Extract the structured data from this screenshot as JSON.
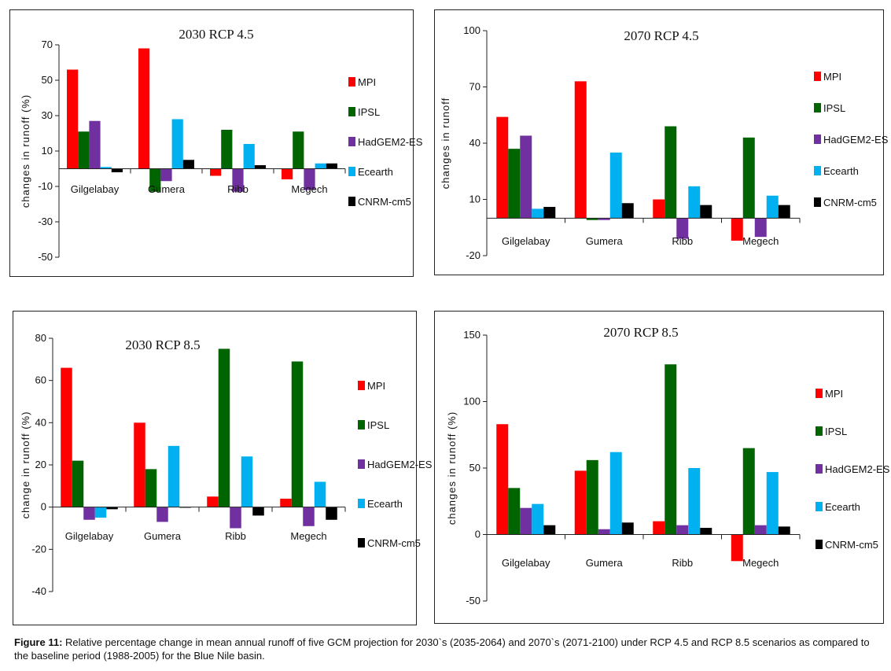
{
  "colors": {
    "MPI": "#ff0000",
    "IPSL": "#006400",
    "HadGEM2-ES": "#7030a0",
    "Ecearth": "#00b0f0",
    "CNRM-cm5": "#000000"
  },
  "chart_data": [
    {
      "type": "bar",
      "title": "2030 RCP 4.5",
      "ylabel": "changes in runoff (%)",
      "ylim": [
        -50,
        70
      ],
      "yticks": [
        "70",
        "50",
        "30",
        "10",
        "-10",
        "-30",
        "-50"
      ],
      "categories": [
        "Gilgelabay",
        "Gumera",
        "Ribb",
        "Megech"
      ],
      "series": [
        {
          "name": "MPI",
          "values": [
            56,
            68,
            -4,
            -6
          ]
        },
        {
          "name": "IPSL",
          "values": [
            21,
            -13,
            22,
            21
          ]
        },
        {
          "name": "HadGEM2-ES",
          "values": [
            27,
            -7,
            -13,
            -12
          ]
        },
        {
          "name": "Ecearth",
          "values": [
            1,
            28,
            14,
            3
          ]
        },
        {
          "name": "CNRM-cm5",
          "values": [
            -2,
            5,
            2,
            3
          ]
        }
      ],
      "legend": "right"
    },
    {
      "type": "bar",
      "title": "2070 RCP 4.5",
      "ylabel": "changes in runoff",
      "ylim": [
        -20,
        100
      ],
      "yticks": [
        "100",
        "70",
        "40",
        "10",
        "-20"
      ],
      "categories": [
        "Gilgelabay",
        "Gumera",
        "Ribb",
        "Megech"
      ],
      "series": [
        {
          "name": "MPI",
          "values": [
            54,
            73,
            10,
            -12
          ]
        },
        {
          "name": "IPSL",
          "values": [
            37,
            -1,
            49,
            43
          ]
        },
        {
          "name": "HadGEM2-ES",
          "values": [
            44,
            -1,
            -11,
            -10
          ]
        },
        {
          "name": "Ecearth",
          "values": [
            5,
            35,
            17,
            12
          ]
        },
        {
          "name": "CNRM-cm5",
          "values": [
            6,
            8,
            7,
            7
          ]
        }
      ],
      "legend": "right"
    },
    {
      "type": "bar",
      "title": "2030 RCP 8.5",
      "ylabel": "change in runoff (%)",
      "ylim": [
        -40,
        80
      ],
      "yticks": [
        "80",
        "60",
        "40",
        "20",
        "0",
        "-20",
        "-40"
      ],
      "categories": [
        "Gilgelabay",
        "Gumera",
        "Ribb",
        "Megech"
      ],
      "series": [
        {
          "name": "MPI",
          "values": [
            66,
            40,
            5,
            4
          ]
        },
        {
          "name": "IPSL",
          "values": [
            22,
            18,
            75,
            69
          ]
        },
        {
          "name": "HadGEM2-ES",
          "values": [
            -6,
            -7,
            -10,
            -9
          ]
        },
        {
          "name": "Ecearth",
          "values": [
            -5,
            29,
            24,
            12
          ]
        },
        {
          "name": "CNRM-cm5",
          "values": [
            -1,
            0,
            -4,
            -6
          ]
        }
      ],
      "legend": "right"
    },
    {
      "type": "bar",
      "title": "2070 RCP 8.5",
      "ylabel": "changes in runoff (%)",
      "ylim": [
        -50,
        150
      ],
      "yticks": [
        "150",
        "100",
        "50",
        "0",
        "-50"
      ],
      "categories": [
        "Gilgelabay",
        "Gumera",
        "Ribb",
        "Megech"
      ],
      "series": [
        {
          "name": "MPI",
          "values": [
            83,
            48,
            10,
            -20
          ]
        },
        {
          "name": "IPSL",
          "values": [
            35,
            56,
            128,
            65
          ]
        },
        {
          "name": "HadGEM2-ES",
          "values": [
            20,
            4,
            7,
            7
          ]
        },
        {
          "name": "Ecearth",
          "values": [
            23,
            62,
            50,
            47
          ]
        },
        {
          "name": "CNRM-cm5",
          "values": [
            7,
            9,
            5,
            6
          ]
        }
      ],
      "legend": "right"
    }
  ],
  "caption": {
    "label": "Figure 11:",
    "text": " Relative percentage change in mean annual runoff of five GCM projection for 2030`s (2035-2064) and 2070`s (2071-2100) under RCP 4.5 and RCP 8.5 scenarios as compared to the baseline period (1988-2005) for the Blue Nile basin."
  }
}
